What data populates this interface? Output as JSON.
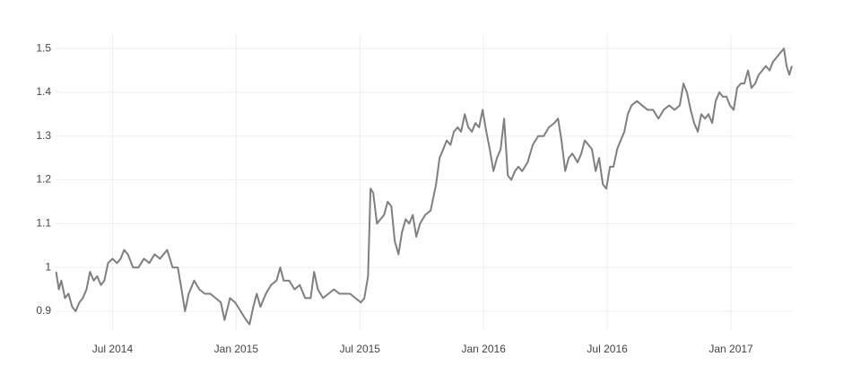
{
  "chart_data": {
    "type": "line",
    "color": "#7f7f7f",
    "grid": true,
    "xlim": [
      2014.27,
      2017.25
    ],
    "xticks": [
      {
        "value": 2014.5,
        "label": "Jul 2014"
      },
      {
        "value": 2015,
        "label": "Jan 2015"
      },
      {
        "value": 2015.5,
        "label": "Jul 2015"
      },
      {
        "value": 2016,
        "label": "Jan 2016"
      },
      {
        "value": 2016.5,
        "label": "Jul 2016"
      },
      {
        "value": 2017,
        "label": "Jan 2017"
      }
    ],
    "ylim": [
      0.857,
      1.533
    ],
    "yticks": [
      0.9,
      1,
      1.1,
      1.2,
      1.3,
      1.4,
      1.5
    ],
    "x": [
      2014.272,
      2014.283,
      2014.293,
      2014.308,
      2014.322,
      2014.337,
      2014.351,
      2014.366,
      2014.38,
      2014.395,
      2014.409,
      2014.424,
      2014.438,
      2014.453,
      2014.467,
      2014.482,
      2014.5,
      2014.518,
      2014.533,
      2014.547,
      2014.562,
      2014.583,
      2014.605,
      2014.627,
      2014.649,
      2014.67,
      2014.692,
      2014.721,
      2014.743,
      2014.764,
      2014.779,
      2014.793,
      2014.808,
      2014.83,
      2014.851,
      2014.873,
      2014.895,
      2014.917,
      2014.938,
      2014.953,
      2014.975,
      2014.996,
      2015.018,
      2015.04,
      2015.054,
      2015.069,
      2015.083,
      2015.098,
      2015.12,
      2015.141,
      2015.163,
      2015.178,
      2015.192,
      2015.214,
      2015.236,
      2015.257,
      2015.279,
      2015.301,
      2015.315,
      2015.33,
      2015.351,
      2015.373,
      2015.395,
      2015.417,
      2015.438,
      2015.46,
      2015.482,
      2015.504,
      2015.518,
      2015.533,
      2015.543,
      2015.554,
      2015.569,
      2015.583,
      2015.598,
      2015.612,
      2015.627,
      2015.641,
      2015.656,
      2015.67,
      2015.685,
      2015.699,
      2015.714,
      2015.728,
      2015.743,
      2015.764,
      2015.786,
      2015.808,
      2015.822,
      2015.837,
      2015.851,
      2015.866,
      2015.88,
      2015.895,
      2015.909,
      2015.924,
      2015.938,
      2015.953,
      2015.967,
      2015.982,
      2015.996,
      2016.011,
      2016.025,
      2016.04,
      2016.054,
      2016.069,
      2016.083,
      2016.098,
      2016.112,
      2016.127,
      2016.141,
      2016.156,
      2016.178,
      2016.199,
      2016.221,
      2016.243,
      2016.264,
      2016.286,
      2016.301,
      2016.315,
      2016.33,
      2016.344,
      2016.359,
      2016.38,
      2016.395,
      2016.409,
      2016.424,
      2016.438,
      2016.453,
      2016.467,
      2016.482,
      2016.496,
      2016.511,
      2016.525,
      2016.54,
      2016.554,
      2016.569,
      2016.583,
      2016.598,
      2016.62,
      2016.641,
      2016.663,
      2016.685,
      2016.707,
      2016.728,
      2016.75,
      2016.772,
      2016.793,
      2016.808,
      2016.822,
      2016.837,
      2016.851,
      2016.866,
      2016.88,
      2016.895,
      2016.909,
      2016.924,
      2016.938,
      2016.953,
      2016.967,
      2016.982,
      2016.996,
      2017.011,
      2017.025,
      2017.04,
      2017.054,
      2017.069,
      2017.083,
      2017.098,
      2017.112,
      2017.127,
      2017.141,
      2017.156,
      2017.17,
      2017.185,
      2017.199,
      2017.214,
      2017.225,
      2017.236,
      2017.246
    ],
    "values": [
      0.99,
      0.95,
      0.97,
      0.93,
      0.94,
      0.91,
      0.9,
      0.92,
      0.93,
      0.95,
      0.99,
      0.97,
      0.98,
      0.96,
      0.97,
      1.01,
      1.02,
      1.01,
      1.02,
      1.04,
      1.03,
      1.0,
      1.0,
      1.02,
      1.01,
      1.03,
      1.02,
      1.04,
      1.0,
      1.0,
      0.95,
      0.9,
      0.94,
      0.97,
      0.95,
      0.94,
      0.94,
      0.93,
      0.92,
      0.88,
      0.93,
      0.92,
      0.9,
      0.88,
      0.87,
      0.91,
      0.94,
      0.91,
      0.94,
      0.96,
      0.97,
      1.0,
      0.97,
      0.97,
      0.95,
      0.96,
      0.93,
      0.93,
      0.99,
      0.95,
      0.93,
      0.94,
      0.95,
      0.94,
      0.94,
      0.94,
      0.93,
      0.92,
      0.93,
      0.98,
      1.18,
      1.17,
      1.1,
      1.11,
      1.12,
      1.15,
      1.14,
      1.06,
      1.03,
      1.08,
      1.11,
      1.1,
      1.12,
      1.07,
      1.1,
      1.12,
      1.13,
      1.19,
      1.25,
      1.27,
      1.29,
      1.28,
      1.31,
      1.32,
      1.31,
      1.35,
      1.32,
      1.31,
      1.33,
      1.32,
      1.36,
      1.31,
      1.27,
      1.22,
      1.25,
      1.27,
      1.34,
      1.21,
      1.2,
      1.22,
      1.23,
      1.22,
      1.24,
      1.28,
      1.3,
      1.3,
      1.32,
      1.33,
      1.34,
      1.29,
      1.22,
      1.25,
      1.26,
      1.24,
      1.26,
      1.29,
      1.28,
      1.27,
      1.22,
      1.25,
      1.19,
      1.18,
      1.23,
      1.23,
      1.27,
      1.29,
      1.31,
      1.35,
      1.37,
      1.38,
      1.37,
      1.36,
      1.36,
      1.34,
      1.36,
      1.37,
      1.36,
      1.37,
      1.42,
      1.4,
      1.36,
      1.33,
      1.31,
      1.35,
      1.34,
      1.35,
      1.33,
      1.38,
      1.4,
      1.39,
      1.39,
      1.37,
      1.36,
      1.41,
      1.42,
      1.42,
      1.45,
      1.41,
      1.42,
      1.44,
      1.45,
      1.46,
      1.45,
      1.47,
      1.48,
      1.49,
      1.5,
      1.46,
      1.44,
      1.46
    ]
  }
}
